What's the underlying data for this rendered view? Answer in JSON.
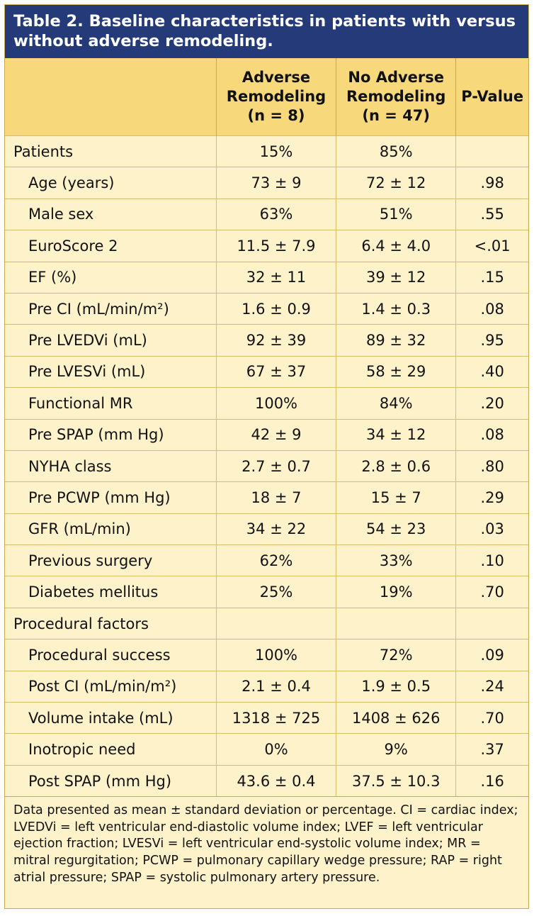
{
  "title": "Table 2. Baseline characteristics in patients with versus without adverse remodeling.",
  "columns": [
    "",
    "Adverse Remodeling (n = 8)",
    "No Adverse Remodeling (n = 47)",
    "P-Value"
  ],
  "rows": [
    {
      "label": "Patients",
      "adverse": "15%",
      "no_adverse": "85%",
      "p": ""
    },
    {
      "label": "Age (years)",
      "adverse": "73 ± 9",
      "no_adverse": "72 ± 12",
      "p": ".98"
    },
    {
      "label": "Male sex",
      "adverse": "63%",
      "no_adverse": "51%",
      "p": ".55"
    },
    {
      "label": "EuroScore 2",
      "adverse": "11.5 ± 7.9",
      "no_adverse": "6.4 ± 4.0",
      "p": "<.01"
    },
    {
      "label": "EF (%)",
      "adverse": "32 ± 11",
      "no_adverse": "39 ± 12",
      "p": ".15"
    },
    {
      "label": "Pre CI (mL/min/m²)",
      "adverse": "1.6 ± 0.9",
      "no_adverse": "1.4 ± 0.3",
      "p": ".08"
    },
    {
      "label": "Pre LVEDVi (mL)",
      "adverse": "92 ± 39",
      "no_adverse": "89 ± 32",
      "p": ".95"
    },
    {
      "label": "Pre LVESVi (mL)",
      "adverse": "67 ± 37",
      "no_adverse": "58 ± 29",
      "p": ".40"
    },
    {
      "label": "Functional MR",
      "adverse": "100%",
      "no_adverse": "84%",
      "p": ".20"
    },
    {
      "label": "Pre SPAP (mm Hg)",
      "adverse": "42 ± 9",
      "no_adverse": "34 ± 12",
      "p": ".08"
    },
    {
      "label": "NYHA class",
      "adverse": "2.7 ± 0.7",
      "no_adverse": "2.8 ± 0.6",
      "p": ".80"
    },
    {
      "label": "Pre PCWP (mm Hg)",
      "adverse": "18 ± 7",
      "no_adverse": "15 ± 7",
      "p": ".29"
    },
    {
      "label": "GFR (mL/min)",
      "adverse": "34 ± 22",
      "no_adverse": "54 ± 23",
      "p": ".03"
    },
    {
      "label": "Previous surgery",
      "adverse": "62%",
      "no_adverse": "33%",
      "p": ".10"
    },
    {
      "label": "Diabetes mellitus",
      "adverse": "25%",
      "no_adverse": "19%",
      "p": ".70"
    },
    {
      "label": "Procedural factors",
      "adverse": "",
      "no_adverse": "",
      "p": ""
    },
    {
      "label": "Procedural success",
      "adverse": "100%",
      "no_adverse": "72%",
      "p": ".09"
    },
    {
      "label": "Post CI (mL/min/m²)",
      "adverse": "2.1 ± 0.4",
      "no_adverse": "1.9 ± 0.5",
      "p": ".24"
    },
    {
      "label": "Volume intake (mL)",
      "adverse": "1318 ± 725",
      "no_adverse": "1408 ± 626",
      "p": ".70"
    },
    {
      "label": "Inotropic need",
      "adverse": "0%",
      "no_adverse": "9%",
      "p": ".37"
    },
    {
      "label": "Post SPAP (mm Hg)",
      "adverse": "43.6 ± 0.4",
      "no_adverse": "37.5 ± 10.3",
      "p": ".16"
    }
  ],
  "footnote": "Data presented as mean ± standard deviation or percentage. CI = cardiac index; LVEDVi = left ventricular end-diastolic volume index; LVEF = left ventricular ejection fraction; LVESVi = left ventricular end-systolic volume index; MR = mitral regurgitation; PCWP = pulmonary capillary wedge pressure; RAP = right atrial pressure; SPAP = systolic pulmonary artery pressure."
}
